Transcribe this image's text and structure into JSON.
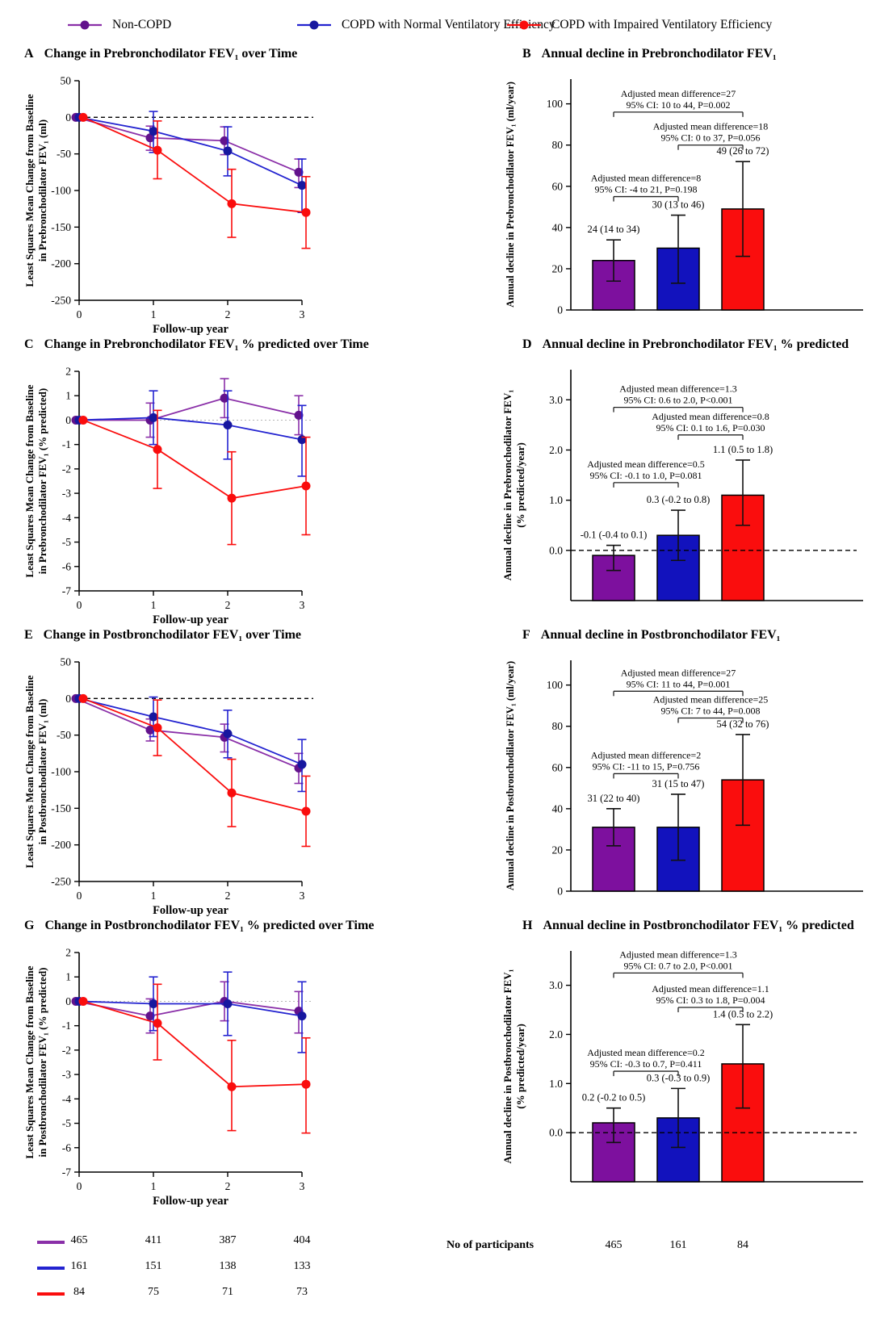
{
  "colors": {
    "purple": "#8a2fa8",
    "purple_marker": "#62128c",
    "purple_bar": "#7d109e",
    "blue": "#2323d0",
    "blue_marker": "#17179f",
    "blue_bar": "#1212bd",
    "red": "#fa0d0d",
    "red_marker": "#fa0d0d",
    "red_bar": "#fa0d0d",
    "axis": "#000000",
    "bracket": "#222222",
    "zero_dotted": "#b5b5b5"
  },
  "legend": {
    "items": [
      {
        "label": "Non-COPD",
        "color": "purple"
      },
      {
        "label": "COPD with Normal Ventilatory Efficiency",
        "color": "blue"
      },
      {
        "label": "COPD with Impaired Ventilatory Efficiency",
        "color": "red"
      }
    ]
  },
  "chart_data": [
    {
      "type": "line",
      "title_letter": "A",
      "title_text": "Change in Prebronchodilator FEV₁ over Time",
      "xlabel": "Follow-up year",
      "ylabel_lines": [
        "Least Squares Mean Change from Baseline",
        "in Prebronchodilator FEV₁ (ml)"
      ],
      "x": [
        0,
        1,
        2,
        3
      ],
      "xtick_labels": [
        "0",
        "1",
        "2",
        "3"
      ],
      "ylim": [
        -250,
        50
      ],
      "yticks": [
        50,
        0,
        -50,
        -100,
        -150,
        -200,
        -250
      ],
      "ytick_decimals": 0,
      "zero_line": "dashed",
      "series": [
        {
          "name": "Non-COPD",
          "color": "purple",
          "values": [
            0,
            -28,
            -32,
            -75
          ],
          "lo": [
            null,
            -45,
            -51,
            -96
          ],
          "hi": [
            null,
            -12,
            -13,
            -57
          ]
        },
        {
          "name": "COPD with Normal Ventilatory Efficiency",
          "color": "blue",
          "values": [
            0,
            -19,
            -46,
            -93
          ],
          "lo": [
            null,
            -48,
            -80,
            -130
          ],
          "hi": [
            null,
            8,
            -13,
            -57
          ]
        },
        {
          "name": "COPD with Impaired Ventilatory Efficiency",
          "color": "red",
          "values": [
            0,
            -45,
            -118,
            -130
          ],
          "lo": [
            null,
            -84,
            -164,
            -179
          ],
          "hi": [
            null,
            -5,
            -71,
            -81
          ]
        }
      ]
    },
    {
      "type": "bar",
      "title_letter": "B",
      "title_text": "Annual decline in Prebronchodilator FEV₁",
      "ylabel_lines": [
        "Annual decline in Prebronchodilator FEV₁ (ml/year)"
      ],
      "ylim": [
        0,
        112
      ],
      "yticks": [
        0,
        20,
        40,
        60,
        80,
        100
      ],
      "ytick_decimals": 0,
      "zero_dashed": false,
      "categories": [
        "Non-COPD",
        "COPD with Normal Ventilatory Efficiency",
        "COPD with Impaired Ventilatory Efficiency"
      ],
      "bars": [
        {
          "color": "purple_bar",
          "value": 24,
          "err_lo": 14,
          "err_hi": 34,
          "label": "24 (14 to 34)"
        },
        {
          "color": "blue_bar",
          "value": 30,
          "err_lo": 13,
          "err_hi": 46,
          "label": "30 (13 to 46)"
        },
        {
          "color": "red_bar",
          "value": 49,
          "err_lo": 26,
          "err_hi": 72,
          "label": "49 (26 to 72)"
        }
      ],
      "comparisons": [
        {
          "from": 0,
          "to": 2,
          "height": 96,
          "lines": [
            "Adjusted mean difference=27",
            "95% CI: 10 to 44, P=0.002"
          ]
        },
        {
          "from": 1,
          "to": 2,
          "height": 80,
          "lines": [
            "Adjusted mean difference=18",
            "95% CI: 0 to 37, P=0.056"
          ]
        },
        {
          "from": 0,
          "to": 1,
          "height": 55,
          "lines": [
            "Adjusted mean difference=8",
            "95% CI: -4 to 21, P=0.198"
          ]
        }
      ]
    },
    {
      "type": "line",
      "title_letter": "C",
      "title_text": "Change in Prebronchodilator FEV₁ % predicted over Time",
      "xlabel": "Follow-up year",
      "ylabel_lines": [
        "Least Squares Mean Change from Baseline",
        "in Prebronchodilator FEV₁ (% predicted)"
      ],
      "x": [
        0,
        1,
        2,
        3
      ],
      "xtick_labels": [
        "0",
        "1",
        "2",
        "3"
      ],
      "ylim": [
        -7,
        2
      ],
      "yticks": [
        2,
        1,
        0,
        -1,
        -2,
        -3,
        -4,
        -5,
        -6,
        -7
      ],
      "ytick_decimals": 0,
      "zero_line": "dotted",
      "series": [
        {
          "name": "Non-COPD",
          "color": "purple",
          "values": [
            0,
            0.0,
            0.9,
            0.2
          ],
          "lo": [
            null,
            -0.7,
            0.1,
            -0.6
          ],
          "hi": [
            null,
            0.7,
            1.7,
            1.0
          ]
        },
        {
          "name": "COPD with Normal Ventilatory Efficiency",
          "color": "blue",
          "values": [
            0,
            0.1,
            -0.2,
            -0.8
          ],
          "lo": [
            null,
            -1.0,
            -1.6,
            -2.3
          ],
          "hi": [
            null,
            1.2,
            1.2,
            0.6
          ]
        },
        {
          "name": "COPD with Impaired Ventilatory Efficiency",
          "color": "red",
          "values": [
            0,
            -1.2,
            -3.2,
            -2.7
          ],
          "lo": [
            null,
            -2.8,
            -5.1,
            -4.7
          ],
          "hi": [
            null,
            0.4,
            -1.3,
            -0.7
          ]
        }
      ]
    },
    {
      "type": "bar",
      "title_letter": "D",
      "title_text": "Annual decline in Prebronchodilator FEV₁ % predicted",
      "ylabel_lines": [
        "Annual decline in Prebronchodilator FEV₁",
        "(% predicted/year)"
      ],
      "ylim": [
        -1.0,
        3.6
      ],
      "yticks": [
        0,
        1,
        2,
        3
      ],
      "ytick_decimals": 1,
      "zero_dashed": true,
      "categories": [
        "Non-COPD",
        "COPD with Normal Ventilatory Efficiency",
        "COPD with Impaired Ventilatory Efficiency"
      ],
      "bars": [
        {
          "color": "purple_bar",
          "value": -0.1,
          "err_lo": -0.4,
          "err_hi": 0.1,
          "label": "-0.1 (-0.4 to 0.1)"
        },
        {
          "color": "blue_bar",
          "value": 0.3,
          "err_lo": -0.2,
          "err_hi": 0.8,
          "label": "0.3 (-0.2 to 0.8)"
        },
        {
          "color": "red_bar",
          "value": 1.1,
          "err_lo": 0.5,
          "err_hi": 1.8,
          "label": "1.1 (0.5 to 1.8)"
        }
      ],
      "comparisons": [
        {
          "from": 0,
          "to": 2,
          "height": 2.85,
          "lines": [
            "Adjusted mean difference=1.3",
            "95% CI: 0.6 to 2.0, P<0.001"
          ]
        },
        {
          "from": 1,
          "to": 2,
          "height": 2.3,
          "lines": [
            "Adjusted mean difference=0.8",
            "95% CI: 0.1 to 1.6, P=0.030"
          ]
        },
        {
          "from": 0,
          "to": 1,
          "height": 1.35,
          "lines": [
            "Adjusted mean difference=0.5",
            "95% CI: -0.1 to 1.0, P=0.081"
          ]
        }
      ]
    },
    {
      "type": "line",
      "title_letter": "E",
      "title_text": "Change in Postbronchodilator FEV₁ over Time",
      "xlabel": "Follow-up year",
      "ylabel_lines": [
        "Least Squares Mean Change from Baseline",
        "in Postbronchodilator FEV₁ (ml)"
      ],
      "x": [
        0,
        1,
        2,
        3
      ],
      "xtick_labels": [
        "0",
        "1",
        "2",
        "3"
      ],
      "ylim": [
        -250,
        50
      ],
      "yticks": [
        50,
        0,
        -50,
        -100,
        -150,
        -200,
        -250
      ],
      "ytick_decimals": 0,
      "zero_line": "dashed",
      "series": [
        {
          "name": "Non-COPD",
          "color": "purple",
          "values": [
            0,
            -43,
            -53,
            -95
          ],
          "lo": [
            null,
            -58,
            -73,
            -116
          ],
          "hi": [
            null,
            -28,
            -35,
            -75
          ]
        },
        {
          "name": "COPD with Normal Ventilatory Efficiency",
          "color": "blue",
          "values": [
            0,
            -25,
            -48,
            -90
          ],
          "lo": [
            null,
            -52,
            -81,
            -127
          ],
          "hi": [
            null,
            2,
            -16,
            -56
          ]
        },
        {
          "name": "COPD with Impaired Ventilatory Efficiency",
          "color": "red",
          "values": [
            0,
            -40,
            -129,
            -154
          ],
          "lo": [
            null,
            -78,
            -175,
            -202
          ],
          "hi": [
            null,
            -2,
            -83,
            -106
          ]
        }
      ]
    },
    {
      "type": "bar",
      "title_letter": "F",
      "title_text": "Annual decline in Postbronchodilator FEV₁",
      "ylabel_lines": [
        "Annual decline in Postbronchodilator FEV₁ (ml/year)"
      ],
      "ylim": [
        0,
        112
      ],
      "yticks": [
        0,
        20,
        40,
        60,
        80,
        100
      ],
      "ytick_decimals": 0,
      "zero_dashed": false,
      "categories": [
        "Non-COPD",
        "COPD with Normal Ventilatory Efficiency",
        "COPD with Impaired Ventilatory Efficiency"
      ],
      "bars": [
        {
          "color": "purple_bar",
          "value": 31,
          "err_lo": 22,
          "err_hi": 40,
          "label": "31 (22 to 40)"
        },
        {
          "color": "blue_bar",
          "value": 31,
          "err_lo": 15,
          "err_hi": 47,
          "label": "31 (15 to 47)"
        },
        {
          "color": "red_bar",
          "value": 54,
          "err_lo": 32,
          "err_hi": 76,
          "label": "54 (32 to 76)"
        }
      ],
      "comparisons": [
        {
          "from": 0,
          "to": 2,
          "height": 97,
          "lines": [
            "Adjusted mean difference=27",
            "95% CI: 11 to 44, P=0.001"
          ]
        },
        {
          "from": 1,
          "to": 2,
          "height": 84,
          "lines": [
            "Adjusted mean difference=25",
            "95% CI: 7 to 44, P=0.008"
          ]
        },
        {
          "from": 0,
          "to": 1,
          "height": 57,
          "lines": [
            "Adjusted mean difference=2",
            "95% CI: -11 to 15, P=0.756"
          ]
        }
      ]
    },
    {
      "type": "line",
      "title_letter": "G",
      "title_text": "Change in Postbronchodilator FEV₁ % predicted over Time",
      "xlabel": "Follow-up year",
      "ylabel_lines": [
        "Least Squares Mean Change from Baseline",
        "in Postbronchodilator FEV₁ (% predicted)"
      ],
      "x": [
        0,
        1,
        2,
        3
      ],
      "xtick_labels": [
        "0",
        "1",
        "2",
        "3"
      ],
      "ylim": [
        -7,
        2
      ],
      "yticks": [
        2,
        1,
        0,
        -1,
        -2,
        -3,
        -4,
        -5,
        -6,
        -7
      ],
      "ytick_decimals": 0,
      "zero_line": "dotted",
      "series": [
        {
          "name": "Non-COPD",
          "color": "purple",
          "values": [
            0,
            -0.6,
            0.0,
            -0.4
          ],
          "lo": [
            null,
            -1.3,
            -0.8,
            -1.3
          ],
          "hi": [
            null,
            0.1,
            0.8,
            0.4
          ]
        },
        {
          "name": "COPD with Normal Ventilatory Efficiency",
          "color": "blue",
          "values": [
            0,
            -0.1,
            -0.1,
            -0.6
          ],
          "lo": [
            null,
            -1.2,
            -1.4,
            -2.1
          ],
          "hi": [
            null,
            1.0,
            1.2,
            0.8
          ]
        },
        {
          "name": "COPD with Impaired Ventilatory Efficiency",
          "color": "red",
          "values": [
            0,
            -0.9,
            -3.5,
            -3.4
          ],
          "lo": [
            null,
            -2.4,
            -5.3,
            -5.4
          ],
          "hi": [
            null,
            0.7,
            -1.6,
            -1.5
          ]
        }
      ]
    },
    {
      "type": "bar",
      "title_letter": "H",
      "title_text": "Annual decline in Postbronchodilator FEV₁ % predicted",
      "ylabel_lines": [
        "Annual decline in Postbronchodilator FEV₁",
        "(% predicted/year)"
      ],
      "ylim": [
        -1.0,
        3.7
      ],
      "yticks": [
        0,
        1,
        2,
        3
      ],
      "ytick_decimals": 1,
      "zero_dashed": true,
      "categories": [
        "Non-COPD",
        "COPD with Normal Ventilatory Efficiency",
        "COPD with Impaired Ventilatory Efficiency"
      ],
      "bars": [
        {
          "color": "purple_bar",
          "value": 0.2,
          "err_lo": -0.2,
          "err_hi": 0.5,
          "label": "0.2 (-0.2 to 0.5)"
        },
        {
          "color": "blue_bar",
          "value": 0.3,
          "err_lo": -0.3,
          "err_hi": 0.9,
          "label": "0.3 (-0.3 to 0.9)"
        },
        {
          "color": "red_bar",
          "value": 1.4,
          "err_lo": 0.5,
          "err_hi": 2.2,
          "label": "1.4 (0.5 to 2.2)"
        }
      ],
      "comparisons": [
        {
          "from": 0,
          "to": 2,
          "height": 3.25,
          "lines": [
            "Adjusted mean difference=1.3",
            "95% CI: 0.7 to 2.0, P<0.001"
          ]
        },
        {
          "from": 1,
          "to": 2,
          "height": 2.55,
          "lines": [
            "Adjusted mean difference=1.1",
            "95% CI: 0.3 to 1.8, P=0.004"
          ]
        },
        {
          "from": 0,
          "to": 1,
          "height": 1.25,
          "lines": [
            "Adjusted mean difference=0.2",
            "95% CI: -0.3 to 0.7, P=0.411"
          ]
        }
      ]
    }
  ],
  "participants_table": {
    "rows": [
      {
        "color": "purple",
        "values": [
          "465",
          "411",
          "387",
          "404"
        ]
      },
      {
        "color": "blue",
        "values": [
          "161",
          "151",
          "138",
          "133"
        ]
      },
      {
        "color": "red",
        "values": [
          "84",
          "75",
          "71",
          "73"
        ]
      }
    ]
  },
  "participants_row": {
    "label": "No of participants",
    "values": [
      "465",
      "161",
      "84"
    ]
  }
}
